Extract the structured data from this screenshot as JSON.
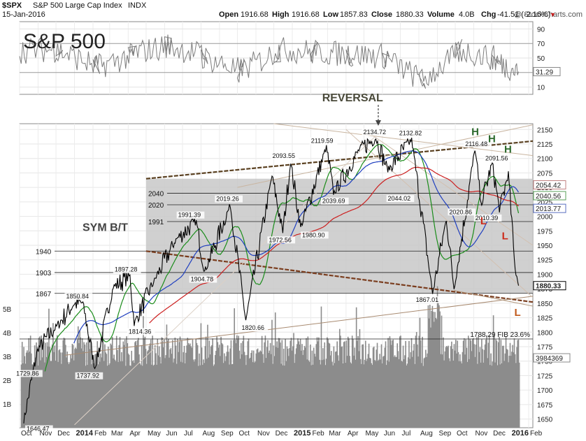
{
  "header": {
    "symbol": "$SPX",
    "name": "S&P 500 Large Cap Index",
    "exchange": "INDX",
    "date": "15-Jan-2016",
    "copyright": "@ StockCharts.com",
    "open_label": "Open",
    "open": "1916.68",
    "high_label": "High",
    "high": "1916.68",
    "low_label": "Low",
    "low": "1857.83",
    "close_label": "Close",
    "close": "1880.33",
    "volume_label": "Volume",
    "volume": "4.0B",
    "chg_label": "Chg",
    "chg": "-41.51 (-2.16%)",
    "down_arrow": "▼"
  },
  "colors": {
    "price": "#000000",
    "ma_green": "#1a8c1a",
    "ma_blue": "#1f3fbf",
    "ma_red": "#cc1f1f",
    "trend_brown": "#7a4a2a",
    "volume": "#8c8c8c",
    "zone": "#c8c8c8",
    "annotation_green": "#2e6b2e",
    "annotation_red": "#cc2a1a"
  },
  "chart_data": [
    {
      "type": "line",
      "panel": "RSI",
      "yticks": [
        10,
        30,
        50,
        70,
        90
      ],
      "ylim": [
        0,
        100
      ],
      "last_value_label": "31.29",
      "series": [
        {
          "x": [
            "2013-10",
            "2013-12",
            "2014-02",
            "2014-04",
            "2014-06",
            "2014-08",
            "2014-10",
            "2014-12",
            "2015-02",
            "2015-04",
            "2015-06",
            "2015-08",
            "2015-10",
            "2015-12",
            "2016-01"
          ],
          "values": [
            60,
            62,
            36,
            55,
            68,
            52,
            30,
            62,
            58,
            55,
            52,
            15,
            62,
            48,
            31.29
          ]
        }
      ]
    },
    {
      "type": "line",
      "panel": "price",
      "title": "S&P 500",
      "yticks": [
        1650,
        1675,
        1700,
        1725,
        1750,
        1775,
        1800,
        1825,
        1850,
        1875,
        1900,
        1925,
        1950,
        1975,
        2000,
        2025,
        2050,
        2075,
        2100,
        2125,
        2150
      ],
      "ylim": [
        1635,
        2160
      ],
      "xticks": [
        "Oct",
        "Nov",
        "Dec",
        "2014",
        "Feb",
        "Mar",
        "Apr",
        "May",
        "Jun",
        "Jul",
        "Aug",
        "Sep",
        "Oct",
        "Nov",
        "Dec",
        "2015",
        "Feb",
        "Mar",
        "Apr",
        "May",
        "Jun",
        "Jul",
        "Aug",
        "Sep",
        "Oct",
        "Nov",
        "Dec",
        "2016",
        "Feb"
      ],
      "series": [
        {
          "x": [
            "2013-10-08",
            "2013-10-31",
            "2013-12-02",
            "2013-12-31",
            "2014-01-15",
            "2014-02-04",
            "2014-03-07",
            "2014-04-04",
            "2014-04-11",
            "2014-05-15",
            "2014-06-20",
            "2014-07-24",
            "2014-08-07",
            "2014-09-19",
            "2014-10-15",
            "2014-11-28",
            "2014-12-16",
            "2014-12-29",
            "2015-01-15",
            "2015-02-27",
            "2015-03-11",
            "2015-04-24",
            "2015-05-21",
            "2015-06-10",
            "2015-07-20",
            "2015-08-24",
            "2015-09-16",
            "2015-09-29",
            "2015-11-03",
            "2015-11-13",
            "2015-12-02",
            "2015-12-14",
            "2015-12-29",
            "2016-01-08",
            "2016-01-15"
          ],
          "values": [
            1646.47,
            1770,
            1810,
            1848,
            1850.84,
            1737.92,
            1878,
            1897.28,
            1814.36,
            1890,
            1960,
            1991.39,
            1904.78,
            2019.26,
            1820.66,
            2070,
            1972.56,
            2093.55,
            1980.9,
            2119.59,
            2039.69,
            2117,
            2134.72,
            2080,
            2132.82,
            1867.01,
            1995,
            1875,
            2116.48,
            2020.86,
            2091.56,
            2010.39,
            2075,
            1925,
            1880.33
          ]
        }
      ],
      "price_labels": [
        "1729.86",
        "1646.47",
        "1850.84",
        "1737.92",
        "1897.28",
        "1814.36",
        "1991.39",
        "1904.78",
        "2019.26",
        "1820.66",
        "1972.56",
        "2093.55",
        "1980.90",
        "2119.59",
        "2039.69",
        "2134.72",
        "2132.82",
        "2044.02",
        "1867.01",
        "2020.86",
        "2116.48",
        "2091.56",
        "2010.39"
      ],
      "level_labels": [
        "2040",
        "2020",
        "1991",
        "1940",
        "1903",
        "1867"
      ],
      "right_value_labels": [
        "2054.42",
        "2040.56",
        "2013.77",
        "1880.33"
      ],
      "fib_label": "1788.29 FIB 23.6%",
      "annotations": {
        "reversal": "REVERSAL",
        "sym": "SYM B/T",
        "h": "H",
        "l": "L"
      }
    },
    {
      "type": "bar",
      "panel": "volume",
      "yticks": [
        "1B",
        "2B",
        "3B",
        "4B",
        "5B"
      ],
      "last_value_label": "3984369"
    }
  ]
}
